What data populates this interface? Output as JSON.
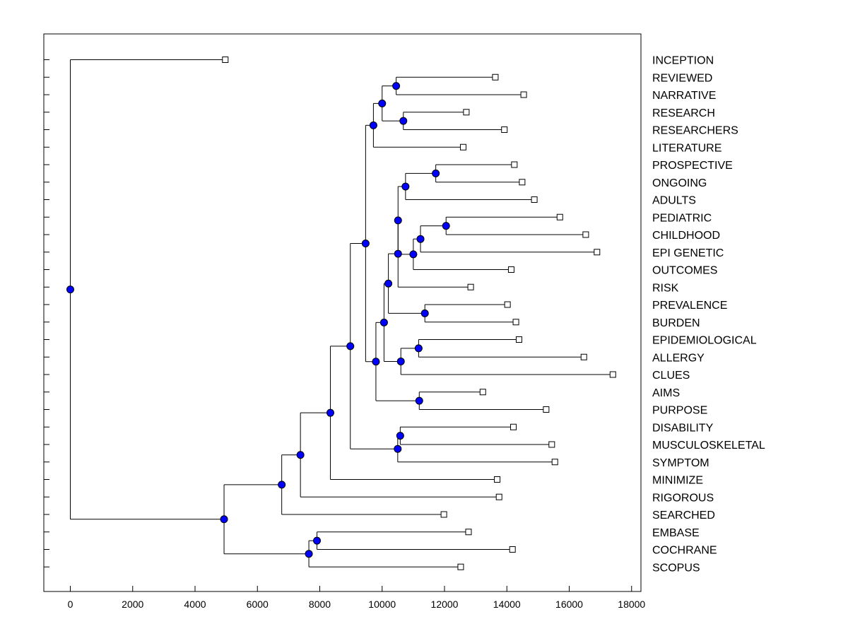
{
  "chart_data": {
    "type": "dendrogram",
    "title": "",
    "xlabel": "",
    "ylabel": "",
    "xlim": [
      -850,
      18300
    ],
    "xticks": [
      0,
      2000,
      4000,
      6000,
      8000,
      10000,
      12000,
      14000,
      16000,
      18000
    ],
    "xtick_labels": [
      "0",
      "2000",
      "4000",
      "6000",
      "8000",
      "10000",
      "12000",
      "14000",
      "16000",
      "18000"
    ],
    "grid": false,
    "leaf_marker": "white-square",
    "node_marker": "blue-circle",
    "colors": {
      "node": "#0000ff",
      "line": "#000000",
      "leaf_fill": "#ffffff"
    },
    "leaves": [
      {
        "label": "INCEPTION",
        "x": 4970
      },
      {
        "label": "REVIEWED",
        "x": 13630
      },
      {
        "label": "NARRATIVE",
        "x": 14540
      },
      {
        "label": "RESEARCH",
        "x": 12700
      },
      {
        "label": "RESEARCHERS",
        "x": 13920
      },
      {
        "label": "LITERATURE",
        "x": 12600
      },
      {
        "label": "PROSPECTIVE",
        "x": 14240
      },
      {
        "label": "ONGOING",
        "x": 14490
      },
      {
        "label": "ADULTS",
        "x": 14880
      },
      {
        "label": "PEDIATRIC",
        "x": 15700
      },
      {
        "label": "CHILDHOOD",
        "x": 16530
      },
      {
        "label": "EPI GENETIC",
        "x": 16890
      },
      {
        "label": "OUTCOMES",
        "x": 14140
      },
      {
        "label": "RISK",
        "x": 12840
      },
      {
        "label": "PREVALENCE",
        "x": 14020
      },
      {
        "label": "BURDEN",
        "x": 14290
      },
      {
        "label": "EPIDEMIOLOGICAL",
        "x": 14390
      },
      {
        "label": "ALLERGY",
        "x": 16470
      },
      {
        "label": "CLUES",
        "x": 17400
      },
      {
        "label": "AIMS",
        "x": 13230
      },
      {
        "label": "PURPOSE",
        "x": 15260
      },
      {
        "label": "DISABILITY",
        "x": 14210
      },
      {
        "label": "MUSCULOSKELETAL",
        "x": 15440
      },
      {
        "label": "SYMPTOM",
        "x": 15540
      },
      {
        "label": "MINIMIZE",
        "x": 13690
      },
      {
        "label": "RIGOROUS",
        "x": 13750
      },
      {
        "label": "SEARCHED",
        "x": 11980
      },
      {
        "label": "EMBASE",
        "x": 12770
      },
      {
        "label": "COCHRANE",
        "x": 14180
      },
      {
        "label": "SCOPUS",
        "x": 12520
      }
    ],
    "nodes": [
      {
        "x": 0,
        "children": [
          "L0",
          "N24"
        ]
      },
      {
        "x": 10450,
        "children": [
          "L1",
          "L2"
        ]
      },
      {
        "x": 10680,
        "children": [
          "L3",
          "L4"
        ]
      },
      {
        "x": 10000,
        "children": [
          "N1",
          "N2"
        ]
      },
      {
        "x": 9720,
        "children": [
          "N3",
          "L5"
        ]
      },
      {
        "x": 11720,
        "children": [
          "L6",
          "L7"
        ]
      },
      {
        "x": 10750,
        "children": [
          "N5",
          "L8"
        ]
      },
      {
        "x": 12050,
        "children": [
          "L9",
          "L10"
        ]
      },
      {
        "x": 11230,
        "children": [
          "N7",
          "L11"
        ]
      },
      {
        "x": 11000,
        "children": [
          "N8",
          "L12"
        ]
      },
      {
        "x": 10510,
        "children": [
          "N6",
          "N9"
        ]
      },
      {
        "x": 10510,
        "children": [
          "N10",
          "L13"
        ]
      },
      {
        "x": 11370,
        "children": [
          "L14",
          "L15"
        ]
      },
      {
        "x": 10200,
        "children": [
          "N11",
          "N12"
        ]
      },
      {
        "x": 11170,
        "children": [
          "L16",
          "L17"
        ]
      },
      {
        "x": 10600,
        "children": [
          "N14",
          "L18"
        ]
      },
      {
        "x": 10060,
        "children": [
          "N13",
          "N15"
        ]
      },
      {
        "x": 11190,
        "children": [
          "L19",
          "L20"
        ]
      },
      {
        "x": 9800,
        "children": [
          "N16",
          "N17"
        ]
      },
      {
        "x": 9470,
        "children": [
          "N4",
          "N18"
        ]
      },
      {
        "x": 10580,
        "children": [
          "L21",
          "L22"
        ]
      },
      {
        "x": 10500,
        "children": [
          "N20",
          "L23"
        ]
      },
      {
        "x": 8980,
        "children": [
          "N19",
          "N21"
        ]
      },
      {
        "x": 8340,
        "children": [
          "N22",
          "L24"
        ]
      },
      {
        "x": 4930,
        "children": [
          "N26",
          "N29"
        ]
      },
      {
        "x": 7380,
        "children": [
          "N23",
          "L25"
        ]
      },
      {
        "x": 6780,
        "children": [
          "N25",
          "L26"
        ]
      },
      {
        "x": 0,
        "children": []
      },
      {
        "x": 7910,
        "children": [
          "L27",
          "L28"
        ]
      },
      {
        "x": 7650,
        "children": [
          "N28",
          "L29"
        ]
      }
    ]
  }
}
